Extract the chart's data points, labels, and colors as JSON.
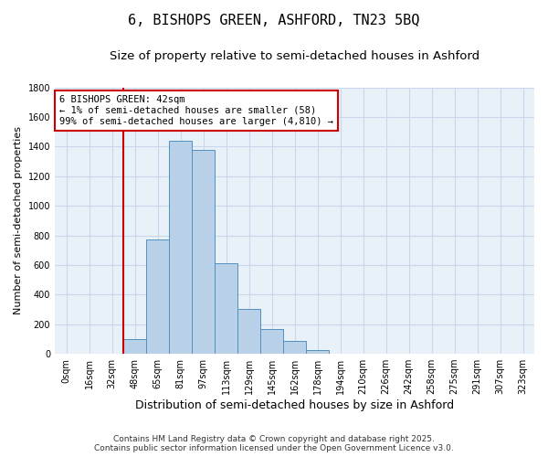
{
  "title": "6, BISHOPS GREEN, ASHFORD, TN23 5BQ",
  "subtitle": "Size of property relative to semi-detached houses in Ashford",
  "xlabel": "Distribution of semi-detached houses by size in Ashford",
  "ylabel": "Number of semi-detached properties",
  "bar_labels": [
    "0sqm",
    "16sqm",
    "32sqm",
    "48sqm",
    "65sqm",
    "81sqm",
    "97sqm",
    "113sqm",
    "129sqm",
    "145sqm",
    "162sqm",
    "178sqm",
    "194sqm",
    "210sqm",
    "226sqm",
    "242sqm",
    "258sqm",
    "275sqm",
    "291sqm",
    "307sqm",
    "323sqm"
  ],
  "bar_values": [
    0,
    0,
    0,
    100,
    770,
    1440,
    1380,
    610,
    300,
    170,
    85,
    25,
    0,
    0,
    0,
    0,
    0,
    0,
    0,
    0,
    0
  ],
  "bar_color": "#b8d0e8",
  "bar_edge_color": "#5090c0",
  "ylim": [
    0,
    1800
  ],
  "yticks": [
    0,
    200,
    400,
    600,
    800,
    1000,
    1200,
    1400,
    1600,
    1800
  ],
  "property_line_color": "#cc0000",
  "annotation_text": "6 BISHOPS GREEN: 42sqm\n← 1% of semi-detached houses are smaller (58)\n99% of semi-detached houses are larger (4,810) →",
  "annotation_box_color": "#ffffff",
  "annotation_box_edge_color": "#cc0000",
  "background_color": "#ffffff",
  "plot_bg_color": "#e8f0f8",
  "grid_color": "#c8d8ea",
  "footer_text": "Contains HM Land Registry data © Crown copyright and database right 2025.\nContains public sector information licensed under the Open Government Licence v3.0.",
  "title_fontsize": 11,
  "subtitle_fontsize": 9.5,
  "xlabel_fontsize": 9,
  "ylabel_fontsize": 8,
  "tick_fontsize": 7,
  "annotation_fontsize": 7.5,
  "footer_fontsize": 6.5
}
